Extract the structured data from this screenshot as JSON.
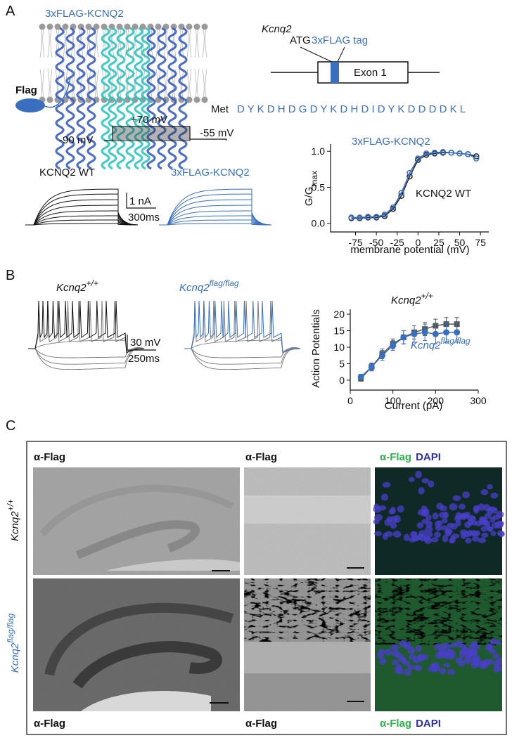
{
  "panel_a": {
    "label": "A",
    "construct_title": "3xFLAG-KCNQ2",
    "flag_label": "Flag",
    "gene": {
      "name": "Kcnq2",
      "atg": "ATG",
      "tag": "3xFLAG tag",
      "exon": "Exon 1"
    },
    "sequence": {
      "start": "Met",
      "residues": "D Y K D H D G D Y K D H D I D Y K D D D D K L"
    },
    "protocol": {
      "step": "+70 mV",
      "hold": "-90 mV",
      "tail": "-55 mV"
    },
    "traces": {
      "wt": "KCNQ2 WT",
      "flag": "3xFLAG-KCNQ2",
      "scale_current": "1 nA",
      "scale_time": "300ms"
    },
    "gv_plot": {
      "type": "scatter",
      "title": "3xFLAG-KCNQ2",
      "annotation": "KCNQ2 WT",
      "y_label": {
        "text": "G/G",
        "sub": "max"
      },
      "x_label": "membrane potential (mV)",
      "x": [
        -80,
        -70,
        -60,
        -50,
        -40,
        -30,
        -20,
        -10,
        0,
        10,
        20,
        30,
        40,
        50,
        60,
        70
      ],
      "series": [
        {
          "color": "#222222",
          "marker": "open-circle",
          "values": [
            0.07,
            0.07,
            0.08,
            0.08,
            0.1,
            0.2,
            0.38,
            0.65,
            0.88,
            0.95,
            0.97,
            0.98,
            0.98,
            0.97,
            0.96,
            0.93
          ]
        },
        {
          "color": "#3a6fc0",
          "marker": "open-circle",
          "values": [
            0.08,
            0.08,
            0.09,
            0.09,
            0.12,
            0.22,
            0.42,
            0.7,
            0.9,
            0.97,
            0.98,
            0.99,
            0.98,
            0.97,
            0.96,
            0.9
          ]
        }
      ],
      "xlim": [
        -105,
        85
      ],
      "ylim": [
        -0.12,
        1.1
      ],
      "xticks": [
        -75,
        -50,
        -25,
        0,
        25,
        50,
        75
      ],
      "yticks": [
        {
          "value": 0,
          "label": "0.0"
        },
        0.5,
        {
          "value": 1,
          "label": "1.0"
        }
      ]
    }
  },
  "panel_b": {
    "label": "B",
    "traces": {
      "wt": {
        "gene": "Kcnq2",
        "genotype": "+/+"
      },
      "flag": {
        "gene": "Kcnq2",
        "genotype": "flag/flag"
      },
      "scale_voltage": "30 mV",
      "scale_time": "250ms"
    },
    "ap_plot": {
      "type": "line",
      "y_label": "Action Potentials",
      "x_label": "Current (pA)",
      "annotations": [
        {
          "text": "Kcnq2",
          "sup": "+/+",
          "color": "#111111"
        },
        {
          "text": "Kcnq2",
          "sup": "flag/flag",
          "color": "#3a6fc0"
        }
      ],
      "x": [
        25,
        50,
        75,
        100,
        125,
        150,
        175,
        200,
        225,
        250
      ],
      "series": [
        {
          "color": "#555555",
          "marker": "square",
          "values": [
            0.5,
            4,
            8,
            11,
            13,
            14.5,
            15.5,
            16.5,
            17,
            17
          ],
          "errors": [
            0.8,
            1.2,
            1.5,
            1.5,
            2,
            2,
            2,
            2,
            2,
            2
          ]
        },
        {
          "color": "#3a6fc0",
          "marker": "circle",
          "values": [
            1,
            4,
            7.5,
            10.5,
            13,
            14,
            14.5,
            14,
            14.5,
            14.5
          ],
          "errors": [
            0.8,
            1,
            1.5,
            1.5,
            2,
            2.5,
            2.5,
            3,
            3,
            3
          ]
        }
      ],
      "xlim": [
        0,
        300
      ],
      "ylim": [
        -3,
        21.5
      ],
      "xticks": [
        0,
        100,
        200,
        300
      ],
      "yticks": [
        0,
        5,
        10,
        15,
        20
      ]
    }
  },
  "panel_c": {
    "label": "C",
    "top_labels": {
      "col1": "α-Flag",
      "col2": "α-Flag",
      "col3_flag": "α-Flag",
      "col3_dapi": "DAPI"
    },
    "bottom_labels": {
      "col1": "α-Flag",
      "col2": "α-Flag",
      "col3_flag": "α-Flag",
      "col3_dapi": "DAPI"
    },
    "rows": [
      {
        "gene": "Kcnq2",
        "genotype": "+/+"
      },
      {
        "gene": "Kcnq2",
        "genotype": "flag/flag"
      }
    ]
  }
}
